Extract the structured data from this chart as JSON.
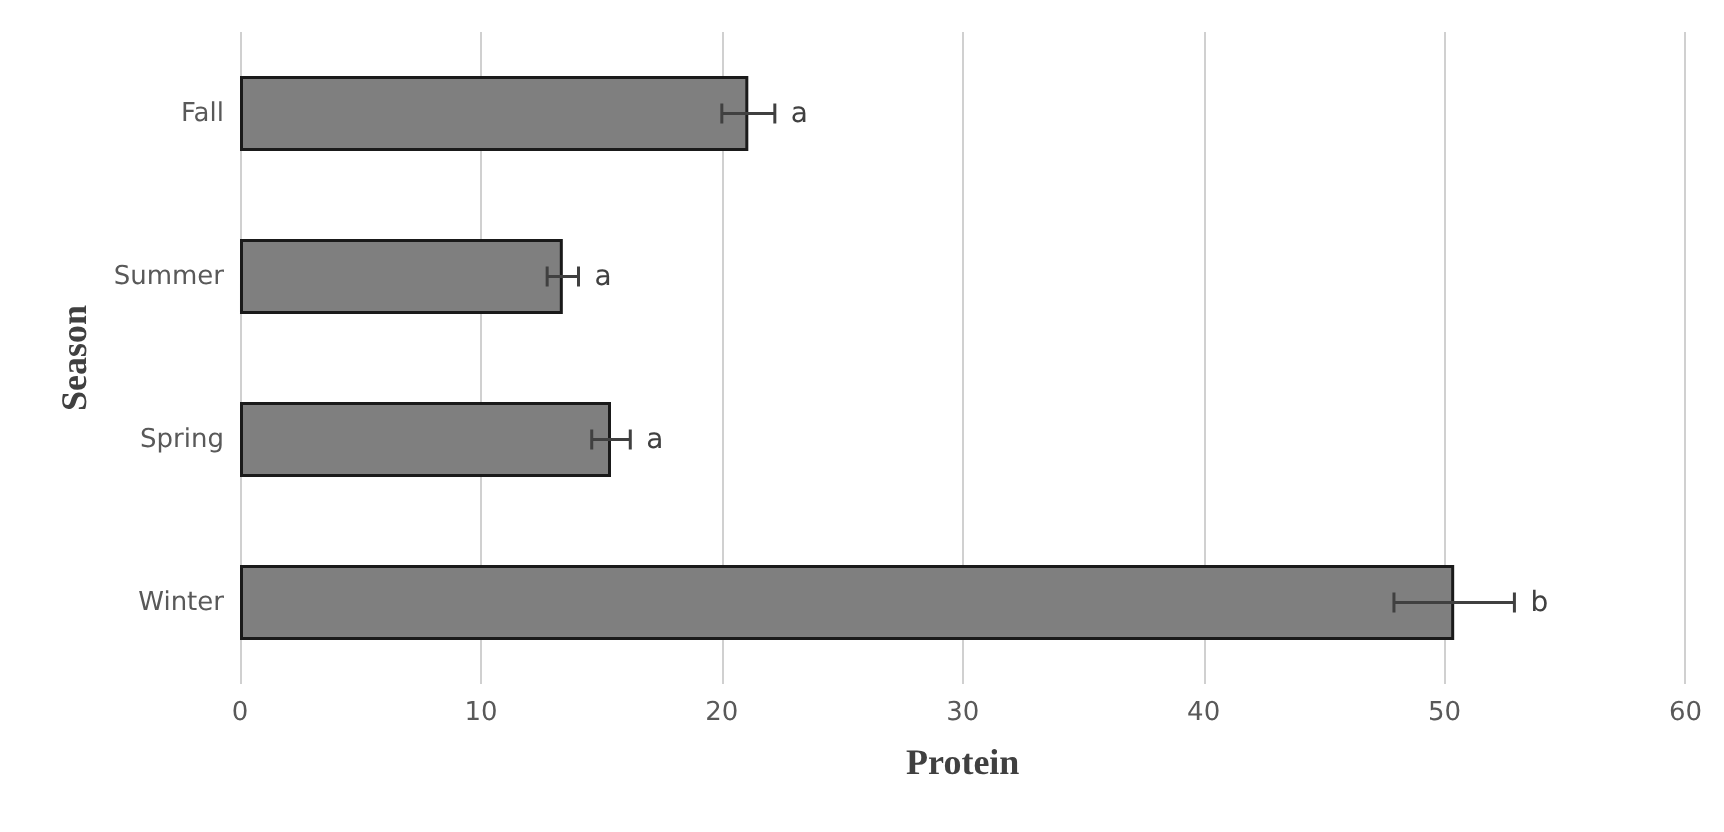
{
  "chart_data": {
    "type": "bar",
    "orientation": "horizontal",
    "xlabel": "Protein",
    "ylabel": "Season",
    "categories": [
      "Fall",
      "Summer",
      "Spring",
      "Winter"
    ],
    "values": [
      21.1,
      13.4,
      15.4,
      50.4
    ],
    "errors": [
      1.1,
      0.65,
      0.8,
      2.5
    ],
    "color": "#7f7f7f",
    "xlim": [
      0,
      60
    ],
    "xticks": [
      0,
      10,
      20,
      30,
      40,
      50,
      60
    ],
    "grid": "x",
    "annotations": [
      {
        "text": "a",
        "x": 22.2,
        "y": "Fall"
      },
      {
        "text": "a",
        "x": 14.05,
        "y": "Summer"
      },
      {
        "text": "a",
        "x": 16.2,
        "y": "Spring"
      },
      {
        "text": "b",
        "x": 52.9,
        "y": "Winter"
      }
    ]
  }
}
